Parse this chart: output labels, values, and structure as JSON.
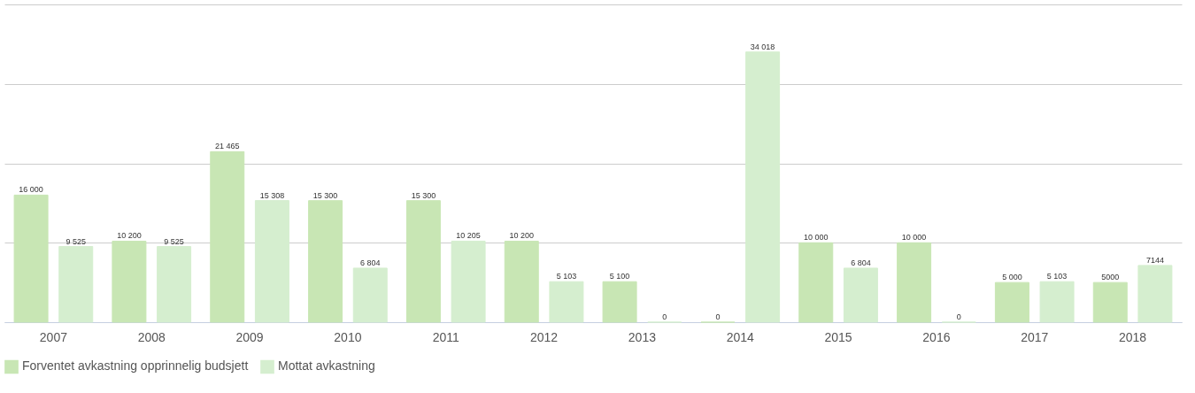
{
  "chart_data": {
    "type": "bar",
    "categories": [
      "2007",
      "2008",
      "2009",
      "2010",
      "2011",
      "2012",
      "2013",
      "2014",
      "2015",
      "2016",
      "2017",
      "2018"
    ],
    "series": [
      {
        "name": "Forventet avkastning opprinnelig budsjett",
        "color": "#c8e6b4",
        "values": [
          16000,
          10200,
          21465,
          15300,
          15300,
          10200,
          5100,
          0,
          10000,
          10000,
          5000,
          5000
        ],
        "value_labels": [
          "16 000",
          "10 200",
          "21 465",
          "15 300",
          "15 300",
          "10 200",
          "5 100",
          "0",
          "10 000",
          "10 000",
          "5 000",
          "5000"
        ]
      },
      {
        "name": "Mottat avkastning",
        "color": "#d5eecf",
        "values": [
          9525,
          9525,
          15308,
          6804,
          10205,
          5103,
          0,
          34018,
          6804,
          0,
          5103,
          7144
        ],
        "value_labels": [
          "9 525",
          "9 525",
          "15 308",
          "6 804",
          "10 205",
          "5 103",
          "0",
          "34 018",
          "6 804",
          "0",
          "5 103",
          "7144"
        ]
      }
    ],
    "ylim": [
      0,
      40000
    ],
    "yticks": [
      {
        "value": 0,
        "label": null
      },
      {
        "value": 10000,
        "label": null
      },
      {
        "value": 20000,
        "label": null
      },
      {
        "value": 30000,
        "label": null
      },
      {
        "value": 40000,
        "label": null
      }
    ],
    "tick_labels": "x",
    "grid": "y",
    "legend": "bottom"
  }
}
